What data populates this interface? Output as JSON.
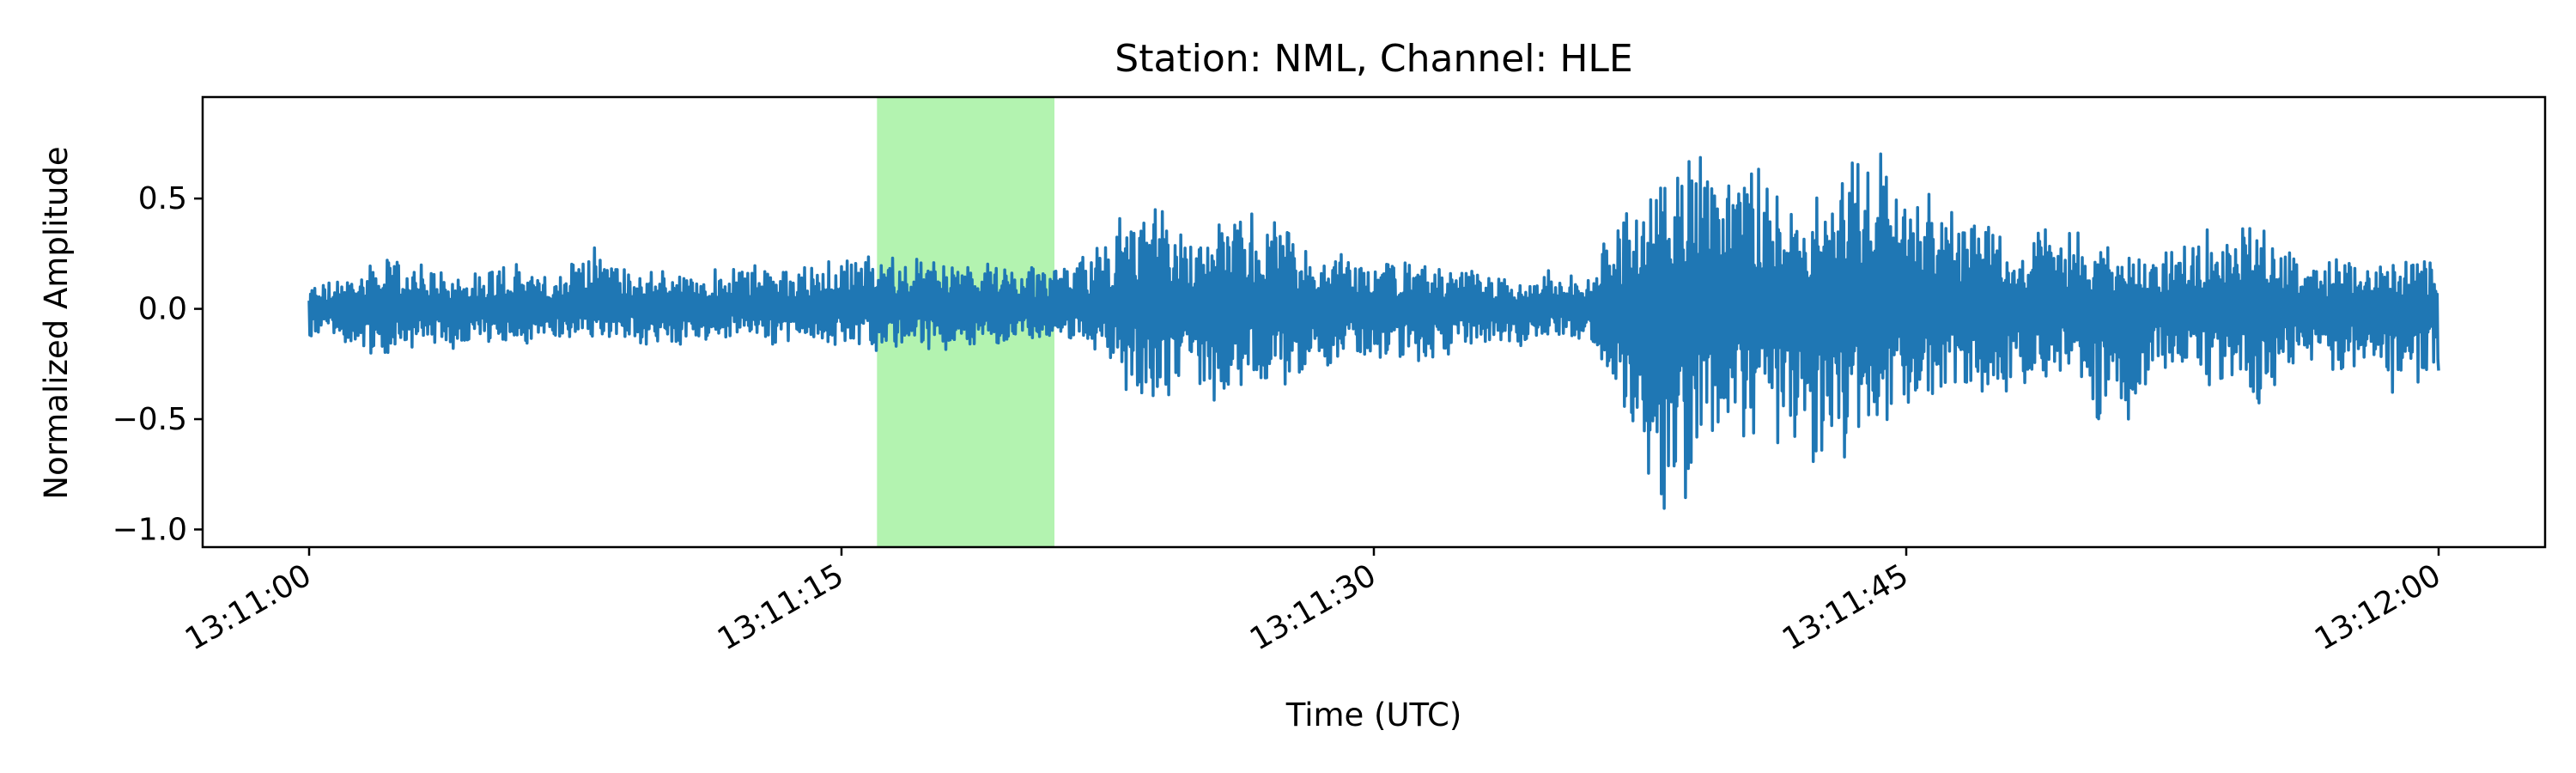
{
  "chart_data": {
    "type": "line",
    "title": "Station: NML, Channel: HLE",
    "xlabel": "Time (UTC)",
    "ylabel": "Normalized Amplitude",
    "x_unit": "time of day (UTC)",
    "xlim": [
      "13:10:57",
      "13:12:03"
    ],
    "ylim": [
      -1.08,
      0.96
    ],
    "x_ticks": [
      "13:11:00",
      "13:11:15",
      "13:11:30",
      "13:11:45",
      "13:12:00"
    ],
    "y_ticks": [
      0.5,
      0.0,
      -0.5,
      -1.0
    ],
    "y_tick_labels": [
      "0.5",
      "0.0",
      "−0.5",
      "−1.0"
    ],
    "highlight_span": {
      "start": "13:11:16",
      "end": "13:11:21",
      "color": "#b3f3b0"
    },
    "grid": false,
    "series": [
      {
        "color": "#1f77b4",
        "x_start": "13:11:00",
        "x_end": "13:12:00",
        "envelope_x_seconds": [
          0,
          1,
          2,
          3,
          4,
          5,
          6,
          7,
          8,
          9,
          10,
          11,
          12,
          13,
          14,
          15,
          16,
          17,
          18,
          19,
          20,
          21,
          22,
          23,
          24,
          25,
          26,
          27,
          28,
          29,
          30,
          31,
          32,
          33,
          34,
          35,
          36,
          37,
          38,
          39,
          40,
          41,
          42,
          43,
          44,
          45,
          46,
          47,
          48,
          49,
          50,
          51,
          52,
          53,
          54,
          55,
          56,
          57,
          58,
          59,
          60
        ],
        "envelope_y_max": [
          0.12,
          0.13,
          0.26,
          0.21,
          0.17,
          0.22,
          0.2,
          0.16,
          0.32,
          0.19,
          0.18,
          0.16,
          0.22,
          0.2,
          0.21,
          0.26,
          0.24,
          0.24,
          0.24,
          0.2,
          0.23,
          0.2,
          0.26,
          0.45,
          0.46,
          0.35,
          0.47,
          0.44,
          0.3,
          0.25,
          0.22,
          0.21,
          0.19,
          0.18,
          0.12,
          0.18,
          0.19,
          0.42,
          0.64,
          0.89,
          0.72,
          0.65,
          0.51,
          0.7,
          0.78,
          0.55,
          0.56,
          0.4,
          0.31,
          0.42,
          0.33,
          0.29,
          0.26,
          0.32,
          0.4,
          0.38,
          0.24,
          0.23,
          0.22,
          0.24,
          0.22
        ],
        "envelope_y_min": [
          -0.14,
          -0.16,
          -0.22,
          -0.17,
          -0.19,
          -0.15,
          -0.18,
          -0.16,
          -0.16,
          -0.15,
          -0.18,
          -0.17,
          -0.13,
          -0.16,
          -0.17,
          -0.18,
          -0.19,
          -0.17,
          -0.2,
          -0.18,
          -0.19,
          -0.12,
          -0.16,
          -0.38,
          -0.42,
          -0.4,
          -0.45,
          -0.34,
          -0.35,
          -0.28,
          -0.24,
          -0.26,
          -0.22,
          -0.16,
          -0.18,
          -0.12,
          -0.15,
          -0.44,
          -1.0,
          -0.82,
          -0.58,
          -0.62,
          -0.67,
          -0.78,
          -0.55,
          -0.48,
          -0.45,
          -0.41,
          -0.38,
          -0.3,
          -0.44,
          -0.6,
          -0.28,
          -0.32,
          -0.39,
          -0.43,
          -0.25,
          -0.3,
          -0.25,
          -0.44,
          -0.28
        ],
        "end_value": -0.28
      }
    ]
  }
}
